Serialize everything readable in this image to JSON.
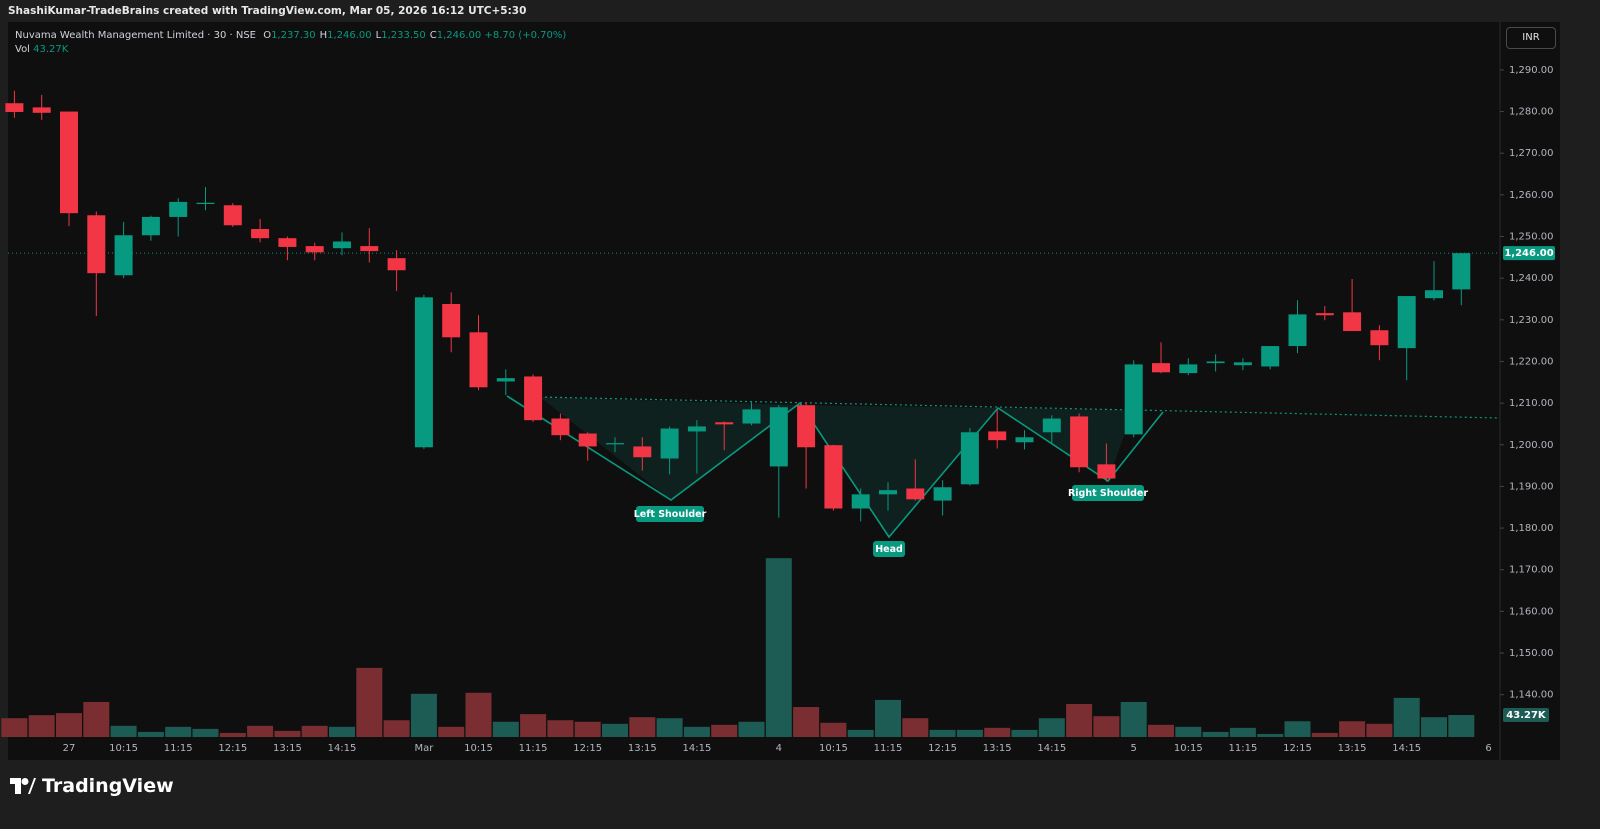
{
  "attribution": "ShashiKumar-TradeBrains created with TradingView.com, Mar 05, 2026 16:12 UTC+5:30",
  "watermark": "TradingView",
  "chart_data": {
    "type": "candlestick",
    "title": "Nuvama Wealth Management Limited · 30 · NSE",
    "legend": [
      {
        "key": "O",
        "label": "1,237.30"
      },
      {
        "key": "H",
        "label": "1,246.00"
      },
      {
        "key": "L",
        "label": "1,233.50"
      },
      {
        "key": "C",
        "label": "1,246.00"
      }
    ],
    "change": "+8.70 (+0.70%)",
    "currency": "INR",
    "categories": [
      null,
      null,
      "27",
      null,
      "10:15",
      null,
      "11:15",
      null,
      "12:15",
      null,
      "13:15",
      null,
      "14:15",
      null,
      null,
      "Mar",
      null,
      "10:15",
      null,
      "11:15",
      null,
      "12:15",
      null,
      "13:15",
      null,
      "14:15",
      null,
      null,
      "4",
      null,
      "10:15",
      null,
      "11:15",
      null,
      "12:15",
      null,
      "13:15",
      null,
      "14:15",
      null,
      null,
      "5",
      null,
      "10:15",
      null,
      "11:15",
      null,
      "12:15",
      null,
      "13:15",
      null,
      "14:15",
      null,
      null,
      "6"
    ],
    "open": [
      1282,
      1281,
      1280,
      1255.1,
      1240.7,
      1250.3,
      1254.7,
      1257.8,
      1257.5,
      1251.8,
      1249.6,
      1247.7,
      1247.2,
      1247.7,
      1244.8,
      1199.4,
      1233.8,
      1227,
      1215.2,
      1216.4,
      1206.3,
      1202.7,
      1200.1,
      1199.6,
      1196.7,
      1203.2,
      1205.4,
      1205.1,
      1194.8,
      1209.5,
      1199.9,
      1184.7,
      1188.1,
      1189.5,
      1186.6,
      1190.5,
      1203.2,
      1200.6,
      1203,
      1206.8,
      1195.3,
      1202.5,
      1219.6,
      1217.2,
      1219.6,
      1219.1,
      1218.8,
      1223.7,
      1231.6,
      1231.8,
      1227.5,
      1223.2,
      1235.2,
      1237.3,
      null
    ],
    "high": [
      1285,
      1284,
      1280,
      1256,
      1253.5,
      1255,
      1259.2,
      1261.9,
      1258,
      1254.2,
      1250,
      1248.5,
      1251,
      1252,
      1246.7,
      1236,
      1236.6,
      1231.1,
      1218.1,
      1216.9,
      1207.5,
      1203,
      1201.8,
      1201.8,
      1204.4,
      1205.9,
      1205.6,
      1210.2,
      1209.5,
      1210.2,
      1200,
      1189.5,
      1191,
      1196.5,
      1191.5,
      1204,
      1208.5,
      1203.5,
      1207.1,
      1207.5,
      1200.3,
      1220.3,
      1224.6,
      1220.8,
      1221.7,
      1220.8,
      1223.7,
      1234.7,
      1233.3,
      1239.8,
      1228.7,
      1235.7,
      1244.1,
      1246,
      null
    ],
    "low": [
      1278.5,
      1278,
      1252.5,
      1230.9,
      1240,
      1249,
      1250,
      1256.3,
      1252.3,
      1248.6,
      1244.3,
      1244.3,
      1245.5,
      1243.8,
      1236.9,
      1199,
      1222.2,
      1213.1,
      1211.9,
      1205.5,
      1201.1,
      1196.2,
      1198.2,
      1193.8,
      1192.9,
      1193.1,
      1198.7,
      1204.7,
      1182.5,
      1189.5,
      1184.2,
      1181.6,
      1184.2,
      1186.6,
      1183,
      1190.2,
      1199.1,
      1198.9,
      1200.3,
      1193.4,
      1191.2,
      1201.8,
      1217.2,
      1216.7,
      1217.6,
      1217.9,
      1218.1,
      1222,
      1229.9,
      1227.3,
      1220.3,
      1215.5,
      1234.7,
      1233.5,
      null
    ],
    "close": [
      1279.9,
      1279.7,
      1255.6,
      1241.2,
      1250.3,
      1254.7,
      1258.3,
      1258.1,
      1252.7,
      1249.6,
      1247.5,
      1246.2,
      1248.8,
      1246.5,
      1241.9,
      1235.4,
      1225.8,
      1213.8,
      1216,
      1205.9,
      1202.3,
      1199.6,
      1200.4,
      1197,
      1203.9,
      1204.4,
      1204.9,
      1208.5,
      1209,
      1199.4,
      1184.7,
      1188.1,
      1189.1,
      1186.9,
      1189.8,
      1203,
      1201.1,
      1201.8,
      1206.3,
      1194.6,
      1191.9,
      1219.3,
      1217.4,
      1219.3,
      1220,
      1219.8,
      1223.7,
      1231.3,
      1231.1,
      1227.3,
      1223.9,
      1235.7,
      1237.1,
      1246,
      null
    ],
    "up_color": "#089981",
    "down_color": "#f23645",
    "ylim": [
      1129.6,
      1301.5
    ],
    "yticks": [
      {
        "value": 1140,
        "label": "1,140.00"
      },
      {
        "value": 1150,
        "label": "1,150.00"
      },
      {
        "value": 1160,
        "label": "1,160.00"
      },
      {
        "value": 1170,
        "label": "1,170.00"
      },
      {
        "value": 1180,
        "label": "1,180.00"
      },
      {
        "value": 1190,
        "label": "1,190.00"
      },
      {
        "value": 1200,
        "label": "1,200.00"
      },
      {
        "value": 1210,
        "label": "1,210.00"
      },
      {
        "value": 1220,
        "label": "1,220.00"
      },
      {
        "value": 1230,
        "label": "1,230.00"
      },
      {
        "value": 1240,
        "label": "1,240.00"
      },
      {
        "value": 1250,
        "label": "1,250.00"
      },
      {
        "value": 1260,
        "label": "1,260.00"
      },
      {
        "value": 1270,
        "label": "1,270.00"
      },
      {
        "value": 1280,
        "label": "1,280.00"
      },
      {
        "value": 1290,
        "label": "1,290.00"
      }
    ],
    "last_price": {
      "value": 1246,
      "label": "1,246.00"
    },
    "volume": {
      "name": "Vol",
      "label": "43.27K",
      "up_color": "#1d5c55",
      "down_color": "#7a2e31",
      "values": [
        37,
        43,
        47,
        69,
        22,
        10,
        20,
        16,
        8,
        22,
        12,
        22,
        20,
        136,
        33,
        85,
        20,
        87,
        30,
        45,
        33,
        30,
        26,
        39,
        37,
        20,
        24,
        30,
        352,
        59,
        28,
        14,
        73,
        37,
        14,
        14,
        18,
        14,
        37,
        65,
        41,
        69,
        24,
        20,
        10,
        18,
        6,
        31,
        8,
        31,
        26,
        77,
        39,
        43.27,
        null
      ]
    },
    "annotations": [
      "Left Shoulder",
      "Head",
      "Right Shoulder"
    ]
  }
}
